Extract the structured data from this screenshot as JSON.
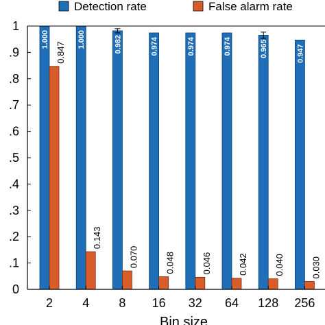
{
  "chart_data": {
    "type": "bar",
    "xlabel": "Bin size",
    "ylabel": "",
    "ylim": [
      0,
      1
    ],
    "yticks": [
      0,
      0.1,
      0.2,
      0.3,
      0.4,
      0.5,
      0.6,
      0.7,
      0.8,
      0.9,
      1
    ],
    "ytick_labels": [
      "0",
      ".1",
      ".2",
      ".3",
      ".4",
      ".5",
      ".6",
      ".7",
      ".8",
      ".9",
      "1"
    ],
    "categories": [
      "2",
      "4",
      "8",
      "16",
      "32",
      "64",
      "128",
      "256"
    ],
    "legend": "top",
    "series": [
      {
        "name": "Detection rate",
        "color": "#1f6fb8",
        "values": [
          1.0,
          1.0,
          0.982,
          0.974,
          0.974,
          0.974,
          0.965,
          0.947
        ],
        "labels": [
          "1.000",
          "1.000",
          "0.982",
          "0.974",
          "0.974",
          "0.974",
          "0.965",
          "0.947"
        ],
        "error": [
          0,
          0,
          0.008,
          0,
          0,
          0,
          0.012,
          0
        ]
      },
      {
        "name": "False alarm rate",
        "color": "#d95c2b",
        "values": [
          0.847,
          0.143,
          0.07,
          0.048,
          0.046,
          0.042,
          0.04,
          0.03
        ],
        "labels": [
          "0.847",
          "0.143",
          "0.070",
          "0.048",
          "0.046",
          "0.042",
          "0.040",
          "0.030"
        ]
      }
    ]
  }
}
